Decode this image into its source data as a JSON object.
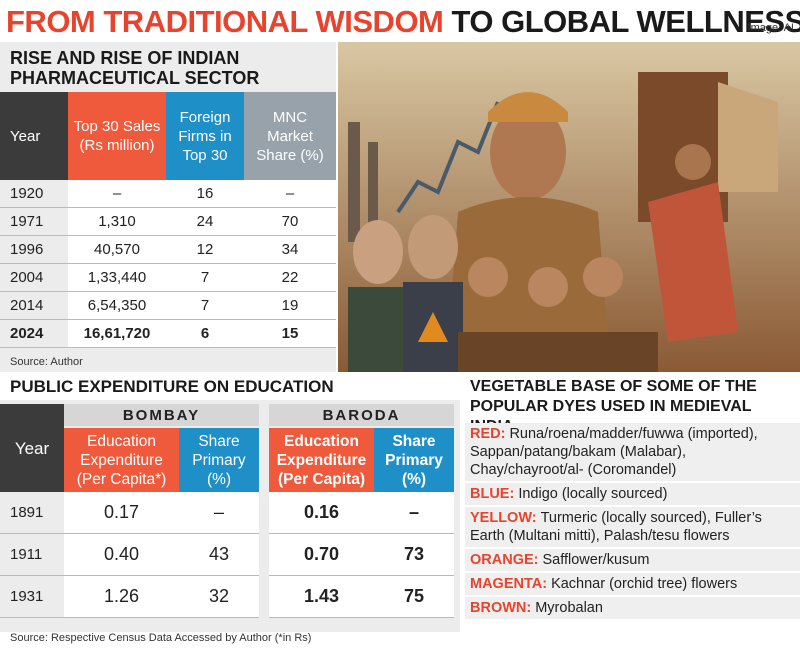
{
  "header": {
    "title_part1": "FROM TRADITIONAL WISDOM",
    "title_part2": "TO GLOBAL WELLNESS",
    "credit": "Image: AI"
  },
  "pharma": {
    "title": "RISE AND RISE OF INDIAN PHARMACEUTICAL SECTOR",
    "columns": [
      "Year",
      "Top 30 Sales (Rs million)",
      "Foreign Firms in Top 30",
      "MNC Market Share (%)"
    ],
    "rows": [
      [
        "1920",
        "–",
        "16",
        "–"
      ],
      [
        "1971",
        "1,310",
        "24",
        "70"
      ],
      [
        "1996",
        "40,570",
        "12",
        "34"
      ],
      [
        "2004",
        "1,33,440",
        "7",
        "22"
      ],
      [
        "2014",
        "6,54,350",
        "7",
        "19"
      ],
      [
        "2024",
        "16,61,720",
        "6",
        "15"
      ]
    ],
    "source": "Source: Author"
  },
  "education": {
    "title": "PUBLIC EXPENDITURE ON EDUCATION",
    "year_label": "Year",
    "groups": [
      "BOMBAY",
      "BARODA"
    ],
    "columns": [
      "Education Expenditure (Per Capita*)",
      "Share Primary (%)",
      "Education Expenditure (Per Capita)",
      "Share Primary (%)"
    ],
    "rows": [
      [
        "1891",
        "0.17",
        "–",
        "0.16",
        "–"
      ],
      [
        "1911",
        "0.40",
        "43",
        "0.70",
        "73"
      ],
      [
        "1931",
        "1.26",
        "32",
        "1.43",
        "75"
      ]
    ],
    "source": "Source: Respective Census Data Accessed by Author   (*in Rs)"
  },
  "dyes": {
    "title": "VEGETABLE BASE OF SOME OF THE POPULAR DYES USED IN MEDIEVAL INDIA",
    "items": [
      {
        "color": "RED:",
        "text": "Runa/roena/madder/fuwwa (imported), Sappan/patang/bakam (Malabar), Chay/chayroot/al- (Coromandel)"
      },
      {
        "color": "BLUE:",
        "text": "Indigo (locally sourced)"
      },
      {
        "color": "YELLOW:",
        "text": "Turmeric (locally sourced), Fuller’s Earth (Multani mitti), Palash/tesu flowers"
      },
      {
        "color": "ORANGE:",
        "text": "Safflower/kusum"
      },
      {
        "color": "MAGENTA:",
        "text": "Kachnar (orchid tree) flowers"
      },
      {
        "color": "BROWN:",
        "text": "Myrobalan"
      }
    ]
  }
}
